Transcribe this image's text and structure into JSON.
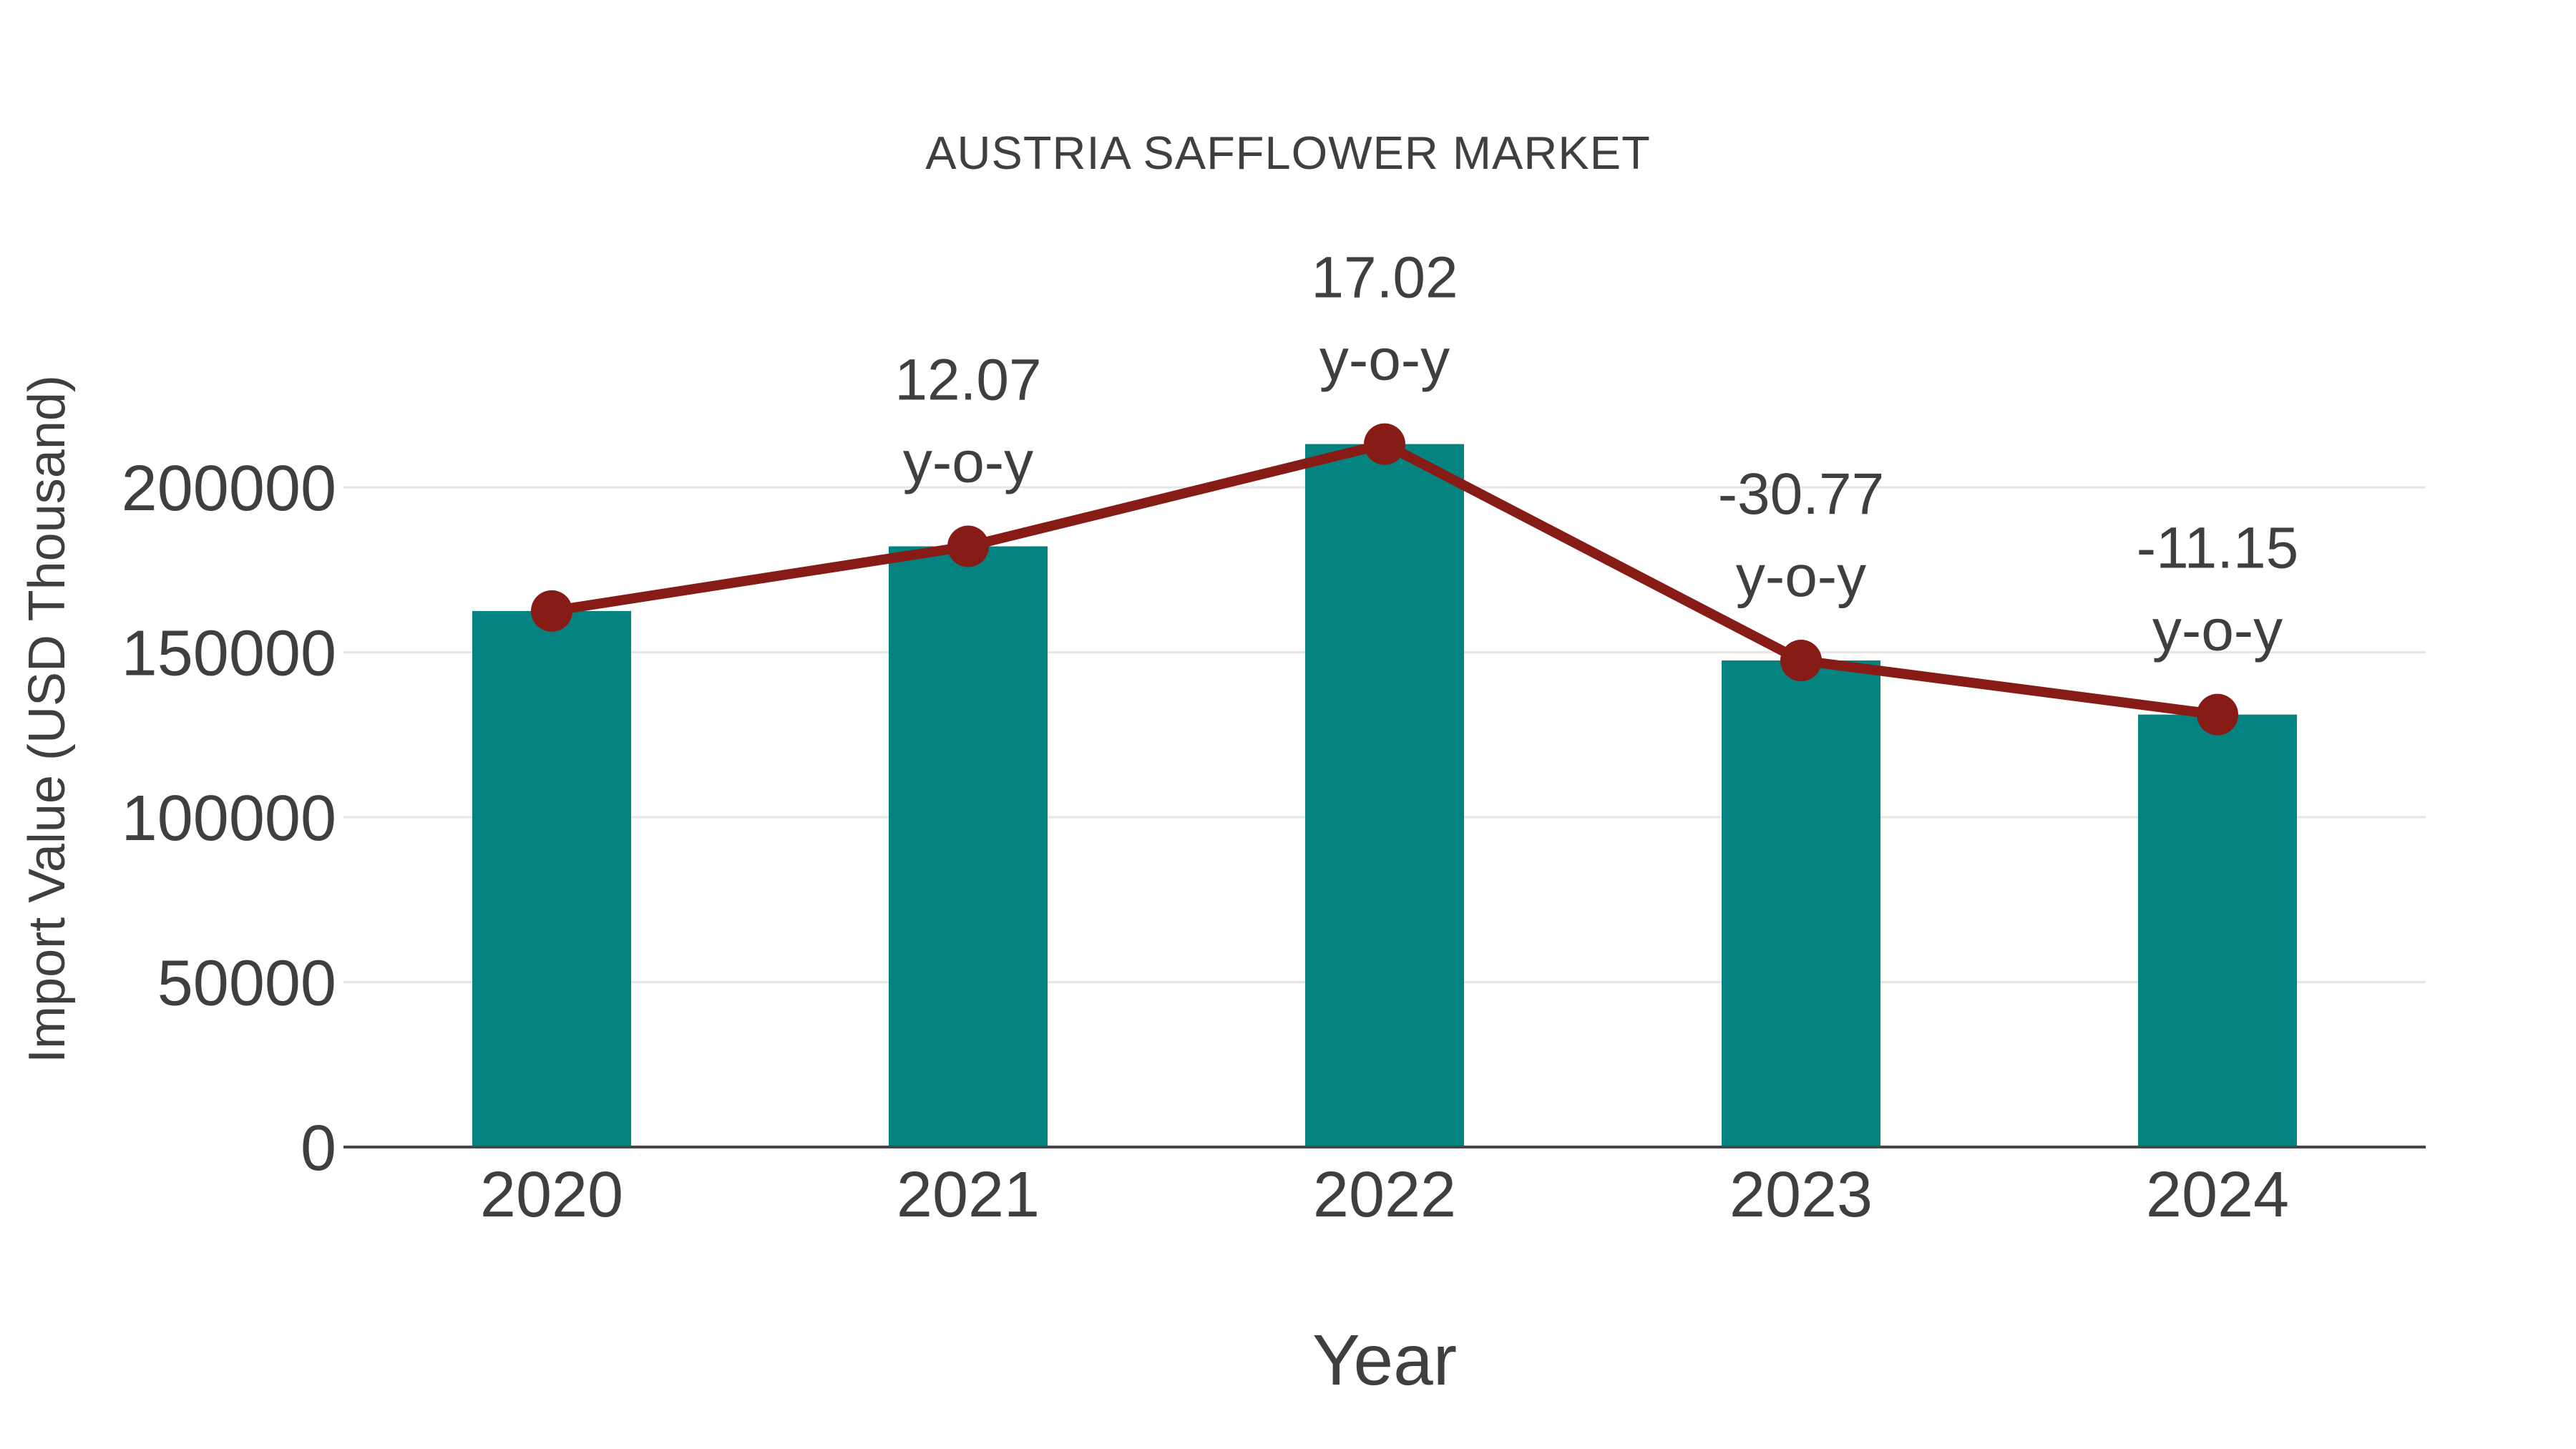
{
  "chart_data": {
    "type": "bar",
    "title": "AUSTRIA SAFFLOWER MARKET",
    "xlabel": "Year",
    "ylabel": "Import Value (USD Thousand)",
    "categories": [
      "2020",
      "2021",
      "2022",
      "2023",
      "2024"
    ],
    "series": [
      {
        "name": "import-value-bars",
        "type": "bar",
        "values": [
          162500,
          182100,
          213100,
          147500,
          131100
        ],
        "color": "#058380"
      },
      {
        "name": "yoy-line",
        "type": "line",
        "values": [
          162500,
          182100,
          213100,
          147500,
          131100
        ],
        "color": "#871C16",
        "annotation_suffix": "y-o-y",
        "annotations": [
          {
            "category": "2021",
            "value": "12.07"
          },
          {
            "category": "2022",
            "value": "17.02"
          },
          {
            "category": "2023",
            "value": "-30.77"
          },
          {
            "category": "2024",
            "value": "-11.15"
          }
        ]
      }
    ],
    "yticks": [
      0,
      50000,
      100000,
      150000,
      200000
    ],
    "ylim": [
      0,
      230000
    ],
    "grid": true,
    "legend_position": "none",
    "colors": {
      "text": "#3F3F3F",
      "gridline": "#E6E6E6",
      "axisline": "#474747",
      "background": "#FFFFFF"
    }
  }
}
